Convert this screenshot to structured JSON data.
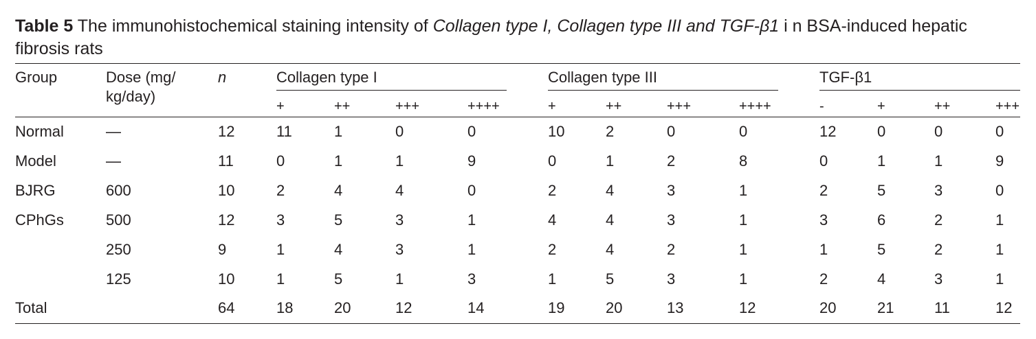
{
  "caption": {
    "label": "Table 5",
    "text_before": " The immunohistochemical staining intensity of ",
    "italic": "Collagen type I, Collagen type III and TGF-β1",
    "text_after": " i n BSA-induced hepatic fibrosis rats"
  },
  "headers": {
    "group": "Group",
    "dose_line1": "Dose (mg/",
    "dose_line2": "kg/day)",
    "n": "n",
    "col1": "Collagen type I",
    "col3": "Collagen type III",
    "tgf": "TGF-β1"
  },
  "subheaders": [
    "+",
    "++",
    "+++",
    "++++",
    "+",
    "++",
    "+++",
    "++++",
    "-",
    "+",
    "++",
    "+++"
  ],
  "rows": [
    {
      "group": "Normal",
      "dose": "—",
      "n": "12",
      "values": [
        "11",
        "1",
        "0",
        "0",
        "10",
        "2",
        "0",
        "0",
        "12",
        "0",
        "0",
        "0"
      ]
    },
    {
      "group": "Model",
      "dose": "—",
      "n": "11",
      "values": [
        "0",
        "1",
        "1",
        "9",
        "0",
        "1",
        "2",
        "8",
        "0",
        "1",
        "1",
        "9"
      ]
    },
    {
      "group": "BJRG",
      "dose": "600",
      "n": "10",
      "values": [
        "2",
        "4",
        "4",
        "0",
        "2",
        "4",
        "3",
        "1",
        "2",
        "5",
        "3",
        "0"
      ]
    },
    {
      "group": "CPhGs",
      "dose": "500",
      "n": "12",
      "values": [
        "3",
        "5",
        "3",
        "1",
        "4",
        "4",
        "3",
        "1",
        "3",
        "6",
        "2",
        "1"
      ]
    },
    {
      "group": "",
      "dose": "250",
      "n": "9",
      "values": [
        "1",
        "4",
        "3",
        "1",
        "2",
        "4",
        "2",
        "1",
        "1",
        "5",
        "2",
        "1"
      ]
    },
    {
      "group": "",
      "dose": "125",
      "n": "10",
      "values": [
        "1",
        "5",
        "1",
        "3",
        "1",
        "5",
        "3",
        "1",
        "2",
        "4",
        "3",
        "1"
      ]
    },
    {
      "group": "Total",
      "dose": "",
      "n": "64",
      "values": [
        "18",
        "20",
        "12",
        "14",
        "19",
        "20",
        "13",
        "12",
        "20",
        "21",
        "11",
        "12"
      ]
    }
  ]
}
